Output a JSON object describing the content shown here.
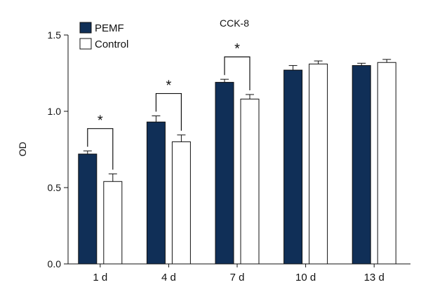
{
  "chart_data": {
    "type": "bar",
    "title": "CCK-8",
    "xlabel": "",
    "ylabel": "OD",
    "ylim": [
      0,
      1.5
    ],
    "yticks": [
      "0.0",
      "0.5",
      "1.0",
      "1.5"
    ],
    "ytick_values": [
      0,
      0.5,
      1.0,
      1.5
    ],
    "categories": [
      "1 d",
      "4 d",
      "7 d",
      "10 d",
      "13 d"
    ],
    "series": [
      {
        "name": "PEMF",
        "values": [
          0.72,
          0.93,
          1.19,
          1.27,
          1.3
        ],
        "errors": [
          0.02,
          0.04,
          0.02,
          0.03,
          0.015
        ],
        "color": "#102f57"
      },
      {
        "name": "Control",
        "values": [
          0.54,
          0.8,
          1.08,
          1.31,
          1.32
        ],
        "errors": [
          0.05,
          0.045,
          0.03,
          0.02,
          0.02
        ],
        "color": "#ffffff"
      }
    ],
    "significance": [
      {
        "category_index": 0,
        "label": "*"
      },
      {
        "category_index": 1,
        "label": "*"
      },
      {
        "category_index": 2,
        "label": "*"
      }
    ],
    "legend_position": "top-left",
    "grid": false
  }
}
